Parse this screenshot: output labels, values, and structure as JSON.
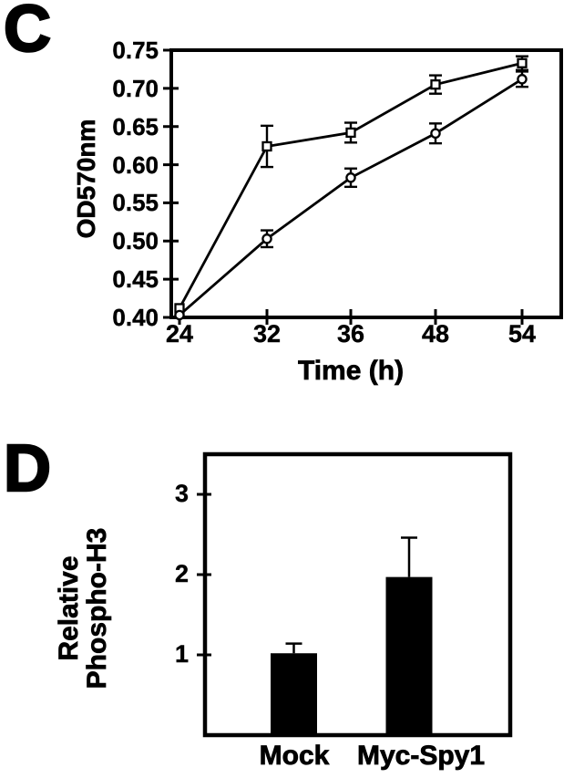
{
  "figure": {
    "panel_c_letter": "C",
    "panel_d_letter": "D"
  },
  "colors": {
    "ink": "#000000",
    "background": "#ffffff",
    "bar_fill": "#000000",
    "marker_fill": "#ffffff"
  },
  "chart_data": [
    {
      "id": "growth-curve",
      "type": "line",
      "panel": "C",
      "title": "",
      "xlabel": "Time (h)",
      "ylabel": "OD570nm",
      "categories": [
        "24",
        "32",
        "36",
        "48",
        "54"
      ],
      "yticks": [
        "0.40",
        "0.45",
        "0.50",
        "0.55",
        "0.60",
        "0.65",
        "0.70",
        "0.75"
      ],
      "ylim": [
        0.4,
        0.75
      ],
      "grid": false,
      "legend": "none",
      "series": [
        {
          "name": "open-square-series",
          "marker": "square",
          "values": [
            0.412,
            0.624,
            0.642,
            0.705,
            0.733
          ],
          "errors": [
            0,
            0.027,
            0.013,
            0.012,
            0.009
          ]
        },
        {
          "name": "open-circle-series",
          "marker": "circle",
          "values": [
            0.403,
            0.503,
            0.583,
            0.641,
            0.712
          ],
          "errors": [
            0,
            0.011,
            0.012,
            0.013,
            0.01
          ]
        }
      ]
    },
    {
      "id": "phospho-h3",
      "type": "bar",
      "panel": "D",
      "title": "",
      "xlabel": "",
      "ylabel": "Relative Phospho-H3",
      "ylabel_lines": [
        "Relative",
        "Phospho-H3"
      ],
      "categories": [
        "Mock",
        "Myc-Spy1"
      ],
      "values": [
        1.02,
        1.97
      ],
      "errors": [
        0.12,
        0.49
      ],
      "yticks": [
        "1",
        "2",
        "3"
      ],
      "ylim": [
        0,
        3.5
      ],
      "grid": false,
      "legend": "none"
    }
  ]
}
